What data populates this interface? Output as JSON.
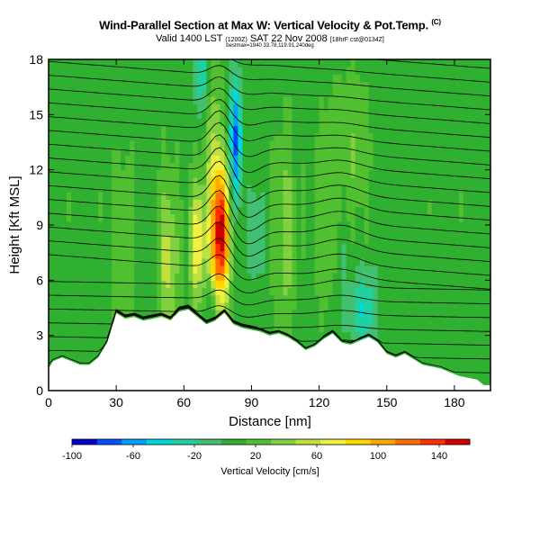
{
  "header": {
    "title": "Wind-Parallel Section at Max W: Vertical Velocity & Pot.Temp.",
    "title_mark": "(C)",
    "valid": "Valid 1400 LST",
    "valid_small": "(1200Z)",
    "valid_date": "SAT 22 Nov 2008",
    "valid_suffix": "[18hrF cst@0134Z]",
    "subline": "bestmax=1940 33.78,119.91,240deg"
  },
  "colors": {
    "terrain": "#ffffff",
    "contour": "#000000"
  },
  "chart_data": {
    "type": "heatmap",
    "xlabel": "Distance [nm]",
    "ylabel": "Height [Kft MSL]",
    "xlim": [
      0,
      196
    ],
    "ylim": [
      0,
      18
    ],
    "xticks": [
      0,
      30,
      60,
      90,
      120,
      150,
      180
    ],
    "yticks": [
      0,
      3,
      6,
      9,
      12,
      15,
      18
    ],
    "terrain_kft": [
      [
        0,
        1.2
      ],
      [
        2,
        1.6
      ],
      [
        6,
        1.8
      ],
      [
        10,
        1.6
      ],
      [
        14,
        1.4
      ],
      [
        18,
        1.4
      ],
      [
        22,
        1.8
      ],
      [
        26,
        2.6
      ],
      [
        30,
        4.2
      ],
      [
        34,
        3.9
      ],
      [
        38,
        4.0
      ],
      [
        42,
        3.8
      ],
      [
        46,
        3.9
      ],
      [
        50,
        4.0
      ],
      [
        54,
        3.8
      ],
      [
        58,
        4.3
      ],
      [
        62,
        4.4
      ],
      [
        66,
        4.0
      ],
      [
        68,
        3.8
      ],
      [
        70,
        3.6
      ],
      [
        74,
        3.8
      ],
      [
        78,
        4.2
      ],
      [
        82,
        3.6
      ],
      [
        86,
        3.4
      ],
      [
        90,
        3.3
      ],
      [
        94,
        3.2
      ],
      [
        98,
        3.0
      ],
      [
        102,
        3.1
      ],
      [
        106,
        2.9
      ],
      [
        110,
        2.6
      ],
      [
        114,
        2.2
      ],
      [
        118,
        2.4
      ],
      [
        122,
        2.8
      ],
      [
        126,
        3.1
      ],
      [
        130,
        2.6
      ],
      [
        134,
        2.5
      ],
      [
        138,
        2.7
      ],
      [
        142,
        2.9
      ],
      [
        146,
        2.6
      ],
      [
        150,
        2.0
      ],
      [
        154,
        1.8
      ],
      [
        158,
        2.0
      ],
      [
        162,
        1.7
      ],
      [
        166,
        1.4
      ],
      [
        170,
        1.3
      ],
      [
        174,
        1.2
      ],
      [
        178,
        1.0
      ],
      [
        182,
        0.8
      ],
      [
        186,
        0.7
      ],
      [
        190,
        0.6
      ],
      [
        193,
        0.3
      ],
      [
        196,
        0.3
      ]
    ],
    "updrafts": [
      {
        "x": 76,
        "z": 8.5,
        "sx": 3.0,
        "sz": 2.6,
        "w": 150
      },
      {
        "x": 66,
        "z": 8.0,
        "sx": 2.5,
        "sz": 2.2,
        "w": 70
      },
      {
        "x": 53,
        "z": 7.0,
        "sx": 3.0,
        "sz": 3.2,
        "w": 45
      },
      {
        "x": 33,
        "z": 8.0,
        "sx": 3.0,
        "sz": 3.0,
        "w": 25
      },
      {
        "x": 105,
        "z": 8.5,
        "sx": 3.0,
        "sz": 4.0,
        "w": 30
      },
      {
        "x": 124,
        "z": 9.5,
        "sx": 4.0,
        "sz": 4.0,
        "w": 20
      },
      {
        "x": 135,
        "z": 13.0,
        "sx": 5.0,
        "sz": 3.0,
        "w": 20
      },
      {
        "x": 73,
        "z": 14.0,
        "sx": 3.0,
        "sz": 3.0,
        "w": 30
      }
    ],
    "downdrafts": [
      {
        "x": 83,
        "z": 13.5,
        "sx": 2.0,
        "sz": 2.5,
        "w": -80
      },
      {
        "x": 68,
        "z": 17.0,
        "sx": 2.5,
        "sz": 1.5,
        "w": -40
      },
      {
        "x": 92,
        "z": 8.5,
        "sx": 2.5,
        "sz": 1.8,
        "w": -30
      },
      {
        "x": 72,
        "z": 4.5,
        "sx": 1.5,
        "sz": 1.0,
        "w": -30
      },
      {
        "x": 140,
        "z": 4.5,
        "sx": 4.0,
        "sz": 1.5,
        "w": -45
      },
      {
        "x": 130,
        "z": 6.5,
        "sx": 3.0,
        "sz": 3.0,
        "w": -15
      }
    ],
    "colorbar": {
      "label": "Vertical Velocity [cm/s]",
      "min": -100,
      "max": 160,
      "ticks": [
        -100,
        -60,
        -20,
        20,
        60,
        100,
        140
      ],
      "colors": [
        "#0000c8",
        "#0050ff",
        "#00a0ff",
        "#00d8e0",
        "#20d0a0",
        "#40c070",
        "#30b030",
        "#50c030",
        "#80d040",
        "#c0e040",
        "#f0f040",
        "#ffd800",
        "#ffa800",
        "#ff7000",
        "#ff3000",
        "#d00000"
      ]
    }
  }
}
